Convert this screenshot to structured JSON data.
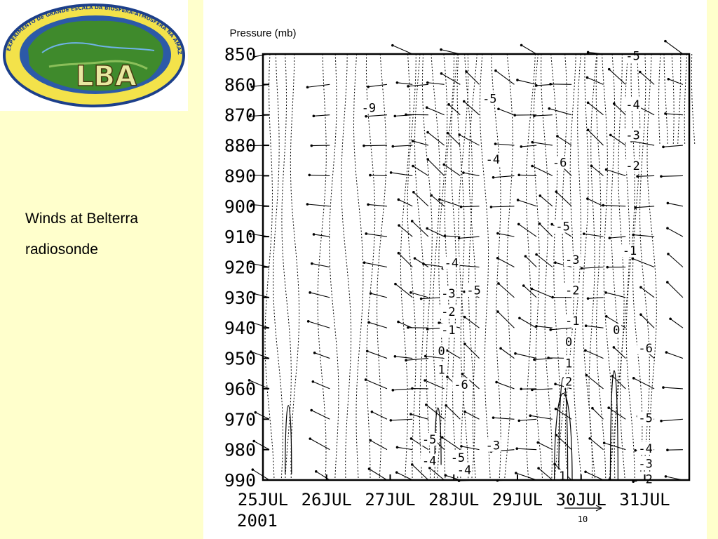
{
  "logo": {
    "text": "LBA",
    "ring_text": "EXPERIMENTO DE GRANDE ESCALA DA BIOSFERA-ATMOSFERA NA AMAZÔNIA - LBA",
    "colors": {
      "ring": "#f3e24a",
      "ring_edge": "#1c3f8a",
      "land": "#3f8a2c",
      "logo_text": "#e8e8a0"
    }
  },
  "caption": {
    "line1": "Winds at Belterra",
    "line2": "radiosonde"
  },
  "chart_data": {
    "type": "contour",
    "ylabel": "Pressure (mb)",
    "y_ticks": [
      850,
      860,
      870,
      880,
      890,
      900,
      910,
      920,
      930,
      940,
      950,
      960,
      970,
      980,
      990
    ],
    "ylim": [
      850,
      990
    ],
    "y_inverted": true,
    "x_ticks": [
      "25JUL",
      "26JUL",
      "27JUL",
      "28JUL",
      "29JUL",
      "30JUL",
      "31JUL"
    ],
    "x_year_label": "2001",
    "xlim": [
      0,
      6.7
    ],
    "vector_reference": "10",
    "wind_columns_x": [
      0.1,
      1.05,
      1.95,
      2.35,
      2.6,
      2.85,
      3.1,
      3.4,
      3.95,
      4.3,
      4.55,
      4.85,
      5.35,
      5.7,
      6.15,
      6.6
    ],
    "contour_labels": [
      {
        "text": "-9",
        "x": 1.55,
        "p": 869
      },
      {
        "text": "-5",
        "x": 3.45,
        "p": 866
      },
      {
        "text": "-4",
        "x": 3.5,
        "p": 886
      },
      {
        "text": "-6",
        "x": 4.55,
        "p": 887
      },
      {
        "text": "-5",
        "x": 4.6,
        "p": 908
      },
      {
        "text": "-3",
        "x": 4.75,
        "p": 919
      },
      {
        "text": "-2",
        "x": 4.75,
        "p": 929
      },
      {
        "text": "-1",
        "x": 4.75,
        "p": 939
      },
      {
        "text": "0",
        "x": 4.75,
        "p": 946
      },
      {
        "text": "1",
        "x": 4.75,
        "p": 953
      },
      {
        "text": "2",
        "x": 4.75,
        "p": 959
      },
      {
        "text": "-4",
        "x": 2.85,
        "p": 920
      },
      {
        "text": "-3",
        "x": 2.8,
        "p": 930
      },
      {
        "text": "-5",
        "x": 3.2,
        "p": 929
      },
      {
        "text": "-2",
        "x": 2.8,
        "p": 936
      },
      {
        "text": "-1",
        "x": 2.8,
        "p": 942
      },
      {
        "text": "0",
        "x": 2.75,
        "p": 949
      },
      {
        "text": "1",
        "x": 2.75,
        "p": 955
      },
      {
        "text": "-6",
        "x": 3.0,
        "p": 960
      },
      {
        "text": "-5",
        "x": 2.5,
        "p": 978
      },
      {
        "text": "-4",
        "x": 2.5,
        "p": 985
      },
      {
        "text": "-5",
        "x": 2.95,
        "p": 984
      },
      {
        "text": "-4",
        "x": 3.05,
        "p": 988
      },
      {
        "text": "-3",
        "x": 3.5,
        "p": 980
      },
      {
        "text": "-5",
        "x": 5.7,
        "p": 852
      },
      {
        "text": "-4",
        "x": 5.7,
        "p": 868
      },
      {
        "text": "-3",
        "x": 5.7,
        "p": 878
      },
      {
        "text": "-2",
        "x": 5.7,
        "p": 888
      },
      {
        "text": "-1",
        "x": 5.65,
        "p": 916
      },
      {
        "text": "0",
        "x": 5.5,
        "p": 942
      },
      {
        "text": "-6",
        "x": 5.9,
        "p": 948
      },
      {
        "text": "-5",
        "x": 5.9,
        "p": 971
      },
      {
        "text": "-4",
        "x": 5.9,
        "p": 981
      },
      {
        "text": "-3",
        "x": 5.9,
        "p": 986
      },
      {
        "text": "-2",
        "x": 5.9,
        "p": 991
      },
      {
        "text": "1",
        "x": 4.65,
        "p": 990
      }
    ],
    "colors": {
      "line": "#000000",
      "background": "#ffffff"
    }
  }
}
